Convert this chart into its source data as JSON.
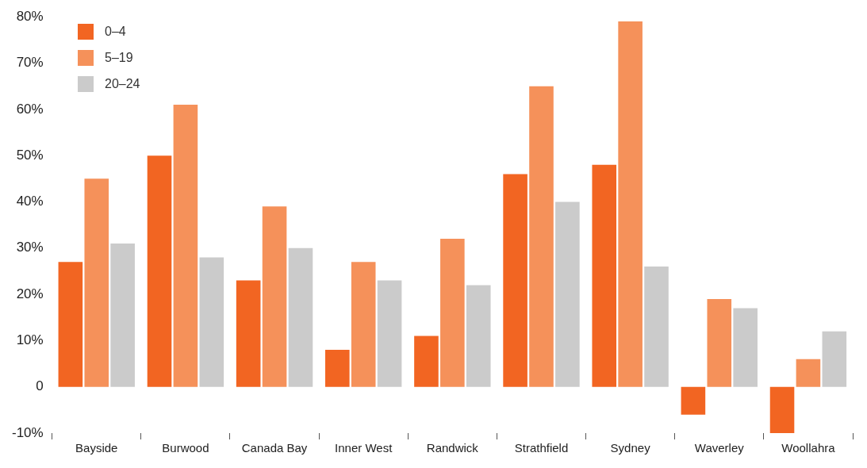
{
  "chart_data": {
    "type": "bar",
    "categories": [
      "Bayside",
      "Burwood",
      "Canada Bay",
      "Inner West",
      "Randwick",
      "Strathfield",
      "Sydney",
      "Waverley",
      "Woollahra"
    ],
    "series": [
      {
        "name": "0–4",
        "color": "#f26522",
        "values": [
          27,
          50,
          23,
          8,
          11,
          46,
          48,
          -6,
          -10
        ]
      },
      {
        "name": "5–19",
        "color": "#f5915a",
        "values": [
          45,
          61,
          39,
          27,
          32,
          65,
          79,
          19,
          6
        ]
      },
      {
        "name": "20–24",
        "color": "#cbcbcb",
        "values": [
          31,
          28,
          30,
          23,
          22,
          40,
          26,
          17,
          12
        ]
      }
    ],
    "ylim": [
      -10,
      80
    ],
    "yticks": [
      {
        "value": -10,
        "label": "-10%"
      },
      {
        "value": 0,
        "label": "0"
      },
      {
        "value": 10,
        "label": "10%"
      },
      {
        "value": 20,
        "label": "20%"
      },
      {
        "value": 30,
        "label": "30%"
      },
      {
        "value": 40,
        "label": "40%"
      },
      {
        "value": 50,
        "label": "50%"
      },
      {
        "value": 60,
        "label": "60%"
      },
      {
        "value": 70,
        "label": "70%"
      },
      {
        "value": 80,
        "label": "80%"
      }
    ],
    "grid": false,
    "legend": "top left"
  }
}
